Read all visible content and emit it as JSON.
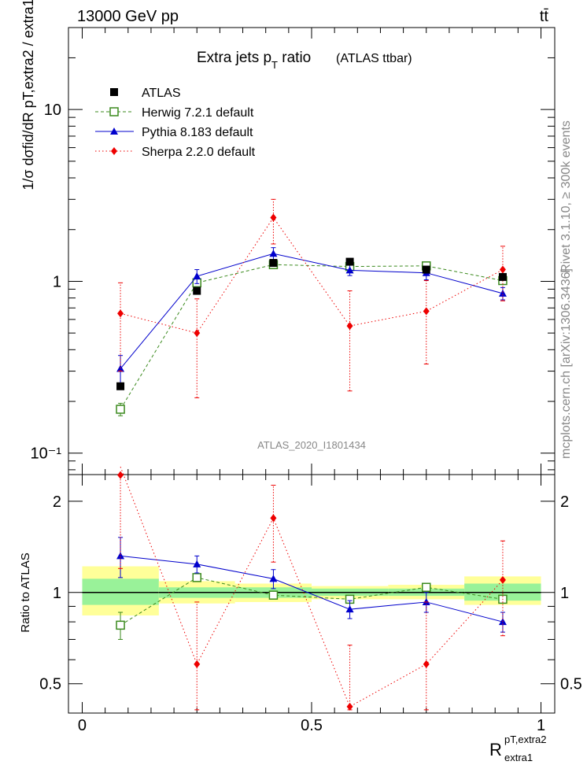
{
  "header": {
    "left": "13000 GeV pp",
    "right": "tt̄"
  },
  "chart_data": {
    "type": "line",
    "title_main": "Extra jets p",
    "title_sub": "T",
    "title_rest": " ratio",
    "title_paren": "(ATLAS ttbar)",
    "analysis": "ATLAS_2020_I1801434",
    "side_label_top": "Rivet 3.1.10, ≥ 300k events",
    "side_label_bottom": "mcplots.cern.ch [arXiv:1306.3436]",
    "ylabel_top": "1/σ dσfid/dR pT,extra2 / extra1",
    "ylabel_bottom": "Ratio to ATLAS",
    "xlabel_main": "R",
    "xlabel_sup": "pT,extra2",
    "xlabel_sub": "extra1",
    "xlim": [
      -0.03,
      1.03
    ],
    "ylim_top": [
      0.075,
      30
    ],
    "ylim_bottom": [
      0.4,
      2.45
    ],
    "x_ticks": [
      "0",
      "0.5",
      "1"
    ],
    "y_ticks_top": [
      "10⁻¹",
      "1",
      "10"
    ],
    "y_ticks_bottom": [
      "0.5",
      "1",
      "2"
    ],
    "bin_edges": [
      0.0,
      0.167,
      0.333,
      0.5,
      0.667,
      0.833,
      1.0
    ],
    "x": [
      0.0833,
      0.25,
      0.4167,
      0.5833,
      0.75,
      0.9167
    ],
    "band_yellow": [
      [
        0.84,
        1.22
      ],
      [
        0.92,
        1.09
      ],
      [
        0.93,
        1.07
      ],
      [
        0.95,
        1.05
      ],
      [
        0.95,
        1.06
      ],
      [
        0.91,
        1.13
      ]
    ],
    "band_green": [
      [
        0.91,
        1.11
      ],
      [
        0.96,
        1.04
      ],
      [
        0.96,
        1.04
      ],
      [
        0.975,
        1.03
      ],
      [
        0.975,
        1.03
      ],
      [
        0.94,
        1.07
      ]
    ],
    "series": [
      {
        "name": "ATLAS",
        "color": "#000000",
        "marker": "square-filled",
        "line": "none",
        "values": [
          0.245,
          0.88,
          1.28,
          1.3,
          1.17,
          1.06
        ],
        "ratio": [
          1,
          1,
          1,
          1,
          1,
          1
        ],
        "ratio_err": [
          0,
          0,
          0,
          0,
          0,
          0
        ]
      },
      {
        "name": "Herwig 7.2.1 default",
        "color": "#3b8a1e",
        "marker": "square-open",
        "line": "dashed",
        "values": [
          0.18,
          0.98,
          1.25,
          1.22,
          1.23,
          1.01
        ],
        "err": [
          0.015,
          0.04,
          0.03,
          0.03,
          0.03,
          0.03
        ],
        "ratio": [
          0.78,
          1.12,
          0.98,
          0.95,
          1.04,
          0.95
        ],
        "ratio_err": [
          0.08,
          0.03,
          0.02,
          0.02,
          0.02,
          0.02
        ]
      },
      {
        "name": "Pythia 8.183 default",
        "color": "#0000cc",
        "marker": "triangle",
        "line": "solid",
        "values": [
          0.31,
          1.07,
          1.45,
          1.16,
          1.12,
          0.85
        ],
        "err": [
          0.06,
          0.1,
          0.12,
          0.08,
          0.1,
          0.07
        ],
        "ratio": [
          1.32,
          1.24,
          1.11,
          0.88,
          0.93,
          0.8
        ],
        "ratio_err": [
          0.2,
          0.08,
          0.08,
          0.06,
          0.07,
          0.06
        ]
      },
      {
        "name": "Sherpa 2.2.0 default",
        "color": "#ee0000",
        "marker": "diamond",
        "line": "dotted",
        "values": [
          0.65,
          0.5,
          2.35,
          0.55,
          0.67,
          1.17
        ],
        "err_lo": [
          0.35,
          0.29,
          0.7,
          0.32,
          0.34,
          0.4
        ],
        "err_hi": [
          0.33,
          0.29,
          0.65,
          0.33,
          0.34,
          0.43
        ],
        "ratio": [
          2.6,
          0.58,
          1.76,
          0.42,
          0.58,
          1.1
        ],
        "ratio_err": [
          1.4,
          0.35,
          0.5,
          0.25,
          0.35,
          0.38
        ]
      }
    ]
  }
}
